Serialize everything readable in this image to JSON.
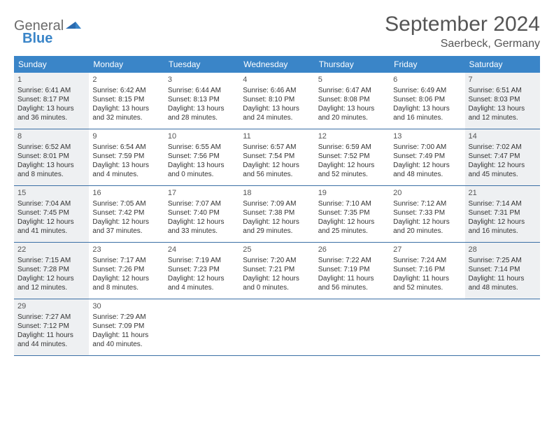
{
  "logo": {
    "general": "General",
    "blue": "Blue"
  },
  "title": "September 2024",
  "location": "Saerbeck, Germany",
  "header_bg": "#3a85c8",
  "weekdays": [
    "Sunday",
    "Monday",
    "Tuesday",
    "Wednesday",
    "Thursday",
    "Friday",
    "Saturday"
  ],
  "weeks": [
    [
      {
        "n": "1",
        "shaded": true,
        "sr": "Sunrise: 6:41 AM",
        "ss": "Sunset: 8:17 PM",
        "d1": "Daylight: 13 hours",
        "d2": "and 36 minutes."
      },
      {
        "n": "2",
        "shaded": false,
        "sr": "Sunrise: 6:42 AM",
        "ss": "Sunset: 8:15 PM",
        "d1": "Daylight: 13 hours",
        "d2": "and 32 minutes."
      },
      {
        "n": "3",
        "shaded": false,
        "sr": "Sunrise: 6:44 AM",
        "ss": "Sunset: 8:13 PM",
        "d1": "Daylight: 13 hours",
        "d2": "and 28 minutes."
      },
      {
        "n": "4",
        "shaded": false,
        "sr": "Sunrise: 6:46 AM",
        "ss": "Sunset: 8:10 PM",
        "d1": "Daylight: 13 hours",
        "d2": "and 24 minutes."
      },
      {
        "n": "5",
        "shaded": false,
        "sr": "Sunrise: 6:47 AM",
        "ss": "Sunset: 8:08 PM",
        "d1": "Daylight: 13 hours",
        "d2": "and 20 minutes."
      },
      {
        "n": "6",
        "shaded": false,
        "sr": "Sunrise: 6:49 AM",
        "ss": "Sunset: 8:06 PM",
        "d1": "Daylight: 13 hours",
        "d2": "and 16 minutes."
      },
      {
        "n": "7",
        "shaded": true,
        "sr": "Sunrise: 6:51 AM",
        "ss": "Sunset: 8:03 PM",
        "d1": "Daylight: 13 hours",
        "d2": "and 12 minutes."
      }
    ],
    [
      {
        "n": "8",
        "shaded": true,
        "sr": "Sunrise: 6:52 AM",
        "ss": "Sunset: 8:01 PM",
        "d1": "Daylight: 13 hours",
        "d2": "and 8 minutes."
      },
      {
        "n": "9",
        "shaded": false,
        "sr": "Sunrise: 6:54 AM",
        "ss": "Sunset: 7:59 PM",
        "d1": "Daylight: 13 hours",
        "d2": "and 4 minutes."
      },
      {
        "n": "10",
        "shaded": false,
        "sr": "Sunrise: 6:55 AM",
        "ss": "Sunset: 7:56 PM",
        "d1": "Daylight: 13 hours",
        "d2": "and 0 minutes."
      },
      {
        "n": "11",
        "shaded": false,
        "sr": "Sunrise: 6:57 AM",
        "ss": "Sunset: 7:54 PM",
        "d1": "Daylight: 12 hours",
        "d2": "and 56 minutes."
      },
      {
        "n": "12",
        "shaded": false,
        "sr": "Sunrise: 6:59 AM",
        "ss": "Sunset: 7:52 PM",
        "d1": "Daylight: 12 hours",
        "d2": "and 52 minutes."
      },
      {
        "n": "13",
        "shaded": false,
        "sr": "Sunrise: 7:00 AM",
        "ss": "Sunset: 7:49 PM",
        "d1": "Daylight: 12 hours",
        "d2": "and 48 minutes."
      },
      {
        "n": "14",
        "shaded": true,
        "sr": "Sunrise: 7:02 AM",
        "ss": "Sunset: 7:47 PM",
        "d1": "Daylight: 12 hours",
        "d2": "and 45 minutes."
      }
    ],
    [
      {
        "n": "15",
        "shaded": true,
        "sr": "Sunrise: 7:04 AM",
        "ss": "Sunset: 7:45 PM",
        "d1": "Daylight: 12 hours",
        "d2": "and 41 minutes."
      },
      {
        "n": "16",
        "shaded": false,
        "sr": "Sunrise: 7:05 AM",
        "ss": "Sunset: 7:42 PM",
        "d1": "Daylight: 12 hours",
        "d2": "and 37 minutes."
      },
      {
        "n": "17",
        "shaded": false,
        "sr": "Sunrise: 7:07 AM",
        "ss": "Sunset: 7:40 PM",
        "d1": "Daylight: 12 hours",
        "d2": "and 33 minutes."
      },
      {
        "n": "18",
        "shaded": false,
        "sr": "Sunrise: 7:09 AM",
        "ss": "Sunset: 7:38 PM",
        "d1": "Daylight: 12 hours",
        "d2": "and 29 minutes."
      },
      {
        "n": "19",
        "shaded": false,
        "sr": "Sunrise: 7:10 AM",
        "ss": "Sunset: 7:35 PM",
        "d1": "Daylight: 12 hours",
        "d2": "and 25 minutes."
      },
      {
        "n": "20",
        "shaded": false,
        "sr": "Sunrise: 7:12 AM",
        "ss": "Sunset: 7:33 PM",
        "d1": "Daylight: 12 hours",
        "d2": "and 20 minutes."
      },
      {
        "n": "21",
        "shaded": true,
        "sr": "Sunrise: 7:14 AM",
        "ss": "Sunset: 7:31 PM",
        "d1": "Daylight: 12 hours",
        "d2": "and 16 minutes."
      }
    ],
    [
      {
        "n": "22",
        "shaded": true,
        "sr": "Sunrise: 7:15 AM",
        "ss": "Sunset: 7:28 PM",
        "d1": "Daylight: 12 hours",
        "d2": "and 12 minutes."
      },
      {
        "n": "23",
        "shaded": false,
        "sr": "Sunrise: 7:17 AM",
        "ss": "Sunset: 7:26 PM",
        "d1": "Daylight: 12 hours",
        "d2": "and 8 minutes."
      },
      {
        "n": "24",
        "shaded": false,
        "sr": "Sunrise: 7:19 AM",
        "ss": "Sunset: 7:23 PM",
        "d1": "Daylight: 12 hours",
        "d2": "and 4 minutes."
      },
      {
        "n": "25",
        "shaded": false,
        "sr": "Sunrise: 7:20 AM",
        "ss": "Sunset: 7:21 PM",
        "d1": "Daylight: 12 hours",
        "d2": "and 0 minutes."
      },
      {
        "n": "26",
        "shaded": false,
        "sr": "Sunrise: 7:22 AM",
        "ss": "Sunset: 7:19 PM",
        "d1": "Daylight: 11 hours",
        "d2": "and 56 minutes."
      },
      {
        "n": "27",
        "shaded": false,
        "sr": "Sunrise: 7:24 AM",
        "ss": "Sunset: 7:16 PM",
        "d1": "Daylight: 11 hours",
        "d2": "and 52 minutes."
      },
      {
        "n": "28",
        "shaded": true,
        "sr": "Sunrise: 7:25 AM",
        "ss": "Sunset: 7:14 PM",
        "d1": "Daylight: 11 hours",
        "d2": "and 48 minutes."
      }
    ],
    [
      {
        "n": "29",
        "shaded": true,
        "sr": "Sunrise: 7:27 AM",
        "ss": "Sunset: 7:12 PM",
        "d1": "Daylight: 11 hours",
        "d2": "and 44 minutes."
      },
      {
        "n": "30",
        "shaded": false,
        "sr": "Sunrise: 7:29 AM",
        "ss": "Sunset: 7:09 PM",
        "d1": "Daylight: 11 hours",
        "d2": "and 40 minutes."
      },
      {
        "n": "",
        "shaded": false,
        "sr": "",
        "ss": "",
        "d1": "",
        "d2": ""
      },
      {
        "n": "",
        "shaded": false,
        "sr": "",
        "ss": "",
        "d1": "",
        "d2": ""
      },
      {
        "n": "",
        "shaded": false,
        "sr": "",
        "ss": "",
        "d1": "",
        "d2": ""
      },
      {
        "n": "",
        "shaded": false,
        "sr": "",
        "ss": "",
        "d1": "",
        "d2": ""
      },
      {
        "n": "",
        "shaded": false,
        "sr": "",
        "ss": "",
        "d1": "",
        "d2": ""
      }
    ]
  ]
}
